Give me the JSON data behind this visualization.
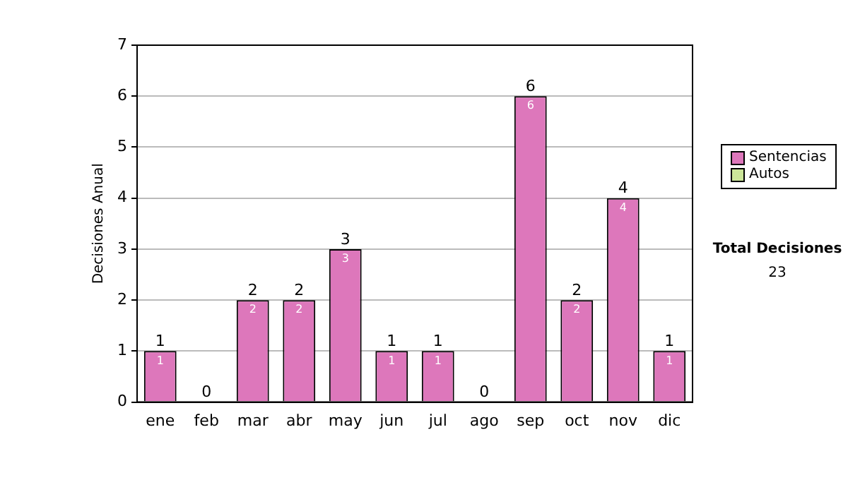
{
  "chart_data": {
    "type": "bar",
    "ylabel": "Decisiones Anual",
    "categories": [
      "ene",
      "feb",
      "mar",
      "abr",
      "may",
      "jun",
      "jul",
      "ago",
      "sep",
      "oct",
      "nov",
      "dic"
    ],
    "series": [
      {
        "name": "Sentencias",
        "color": "#dd77bb",
        "values": [
          1,
          0,
          2,
          2,
          3,
          1,
          1,
          0,
          6,
          2,
          4,
          1
        ],
        "value_labels": [
          "1",
          null,
          "2",
          "2",
          "3",
          "1",
          "1",
          null,
          "6",
          "2",
          "4",
          "1"
        ]
      },
      {
        "name": "Autos",
        "color": "#cce699",
        "values": [
          0,
          0,
          0,
          0,
          0,
          0,
          0,
          0,
          0,
          0,
          0,
          0
        ],
        "value_labels": [
          null,
          null,
          null,
          null,
          null,
          null,
          null,
          null,
          null,
          null,
          null,
          null
        ]
      }
    ],
    "stacked": true,
    "totals": [
      "1",
      "0",
      "2",
      "2",
      "3",
      "1",
      "1",
      "0",
      "6",
      "2",
      "4",
      "1"
    ],
    "ylim": [
      0,
      7
    ],
    "yticks": [
      0,
      1,
      2,
      3,
      4,
      5,
      6,
      7
    ],
    "grid": "y",
    "legend": "right",
    "annotations": [
      "Total Decisiones",
      "23"
    ]
  }
}
